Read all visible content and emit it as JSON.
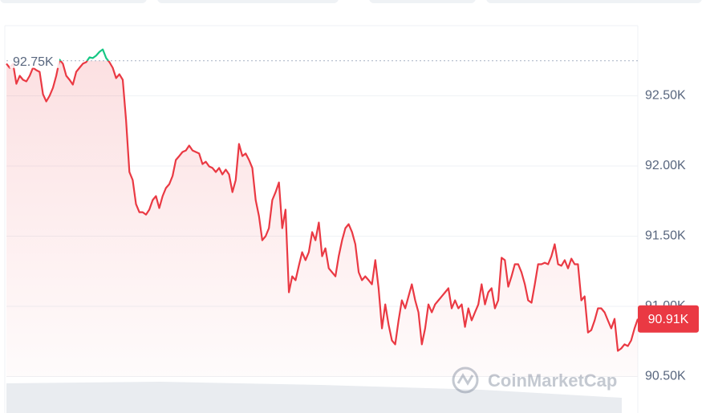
{
  "chart_data": {
    "type": "line",
    "values": [
      92.729,
      92.7,
      92.729,
      92.586,
      92.643,
      92.614,
      92.603,
      92.643,
      92.7,
      92.683,
      92.671,
      92.511,
      92.46,
      92.5,
      92.557,
      92.643,
      92.757,
      92.729,
      92.643,
      92.614,
      92.58,
      92.671,
      92.7,
      92.729,
      92.74,
      92.774,
      92.769,
      92.786,
      92.814,
      92.831,
      92.769,
      92.74,
      92.7,
      92.626,
      92.654,
      92.614,
      92.329,
      91.957,
      91.9,
      91.729,
      91.671,
      91.671,
      91.654,
      91.689,
      91.757,
      91.786,
      91.7,
      91.786,
      91.843,
      91.871,
      91.929,
      92.043,
      92.071,
      92.1,
      92.111,
      92.146,
      92.111,
      92.1,
      92.089,
      92.014,
      92.031,
      91.997,
      91.986,
      91.957,
      91.986,
      91.94,
      91.974,
      91.94,
      91.814,
      91.9,
      92.157,
      92.071,
      92.089,
      92.043,
      91.986,
      91.757,
      91.643,
      91.471,
      91.5,
      91.557,
      91.757,
      91.814,
      91.883,
      91.557,
      91.689,
      91.1,
      91.214,
      91.186,
      91.289,
      91.386,
      91.329,
      91.386,
      91.529,
      91.471,
      91.597,
      91.357,
      91.414,
      91.271,
      91.243,
      91.214,
      91.357,
      91.471,
      91.557,
      91.586,
      91.529,
      91.443,
      91.243,
      91.186,
      91.214,
      91.186,
      91.157,
      91.329,
      91.129,
      90.843,
      91.014,
      90.871,
      90.757,
      90.729,
      90.9,
      91.043,
      90.986,
      91.071,
      91.157,
      91.043,
      90.957,
      90.729,
      90.843,
      91.014,
      90.957,
      91.014,
      91.043,
      91.071,
      91.1,
      91.129,
      90.986,
      91.043,
      90.986,
      91.014,
      90.854,
      90.986,
      90.9,
      90.957,
      91.014,
      91.157,
      91.014,
      91.1,
      91.129,
      90.986,
      91.043,
      91.346,
      91.329,
      91.14,
      91.214,
      91.3,
      91.3,
      91.243,
      91.157,
      91.043,
      91.026,
      91.157,
      91.3,
      91.3,
      91.311,
      91.3,
      91.357,
      91.443,
      91.3,
      91.289,
      91.329,
      91.271,
      91.34,
      91.3,
      91.3,
      91.043,
      91.071,
      90.814,
      90.831,
      90.9,
      90.986,
      90.986,
      90.957,
      90.9,
      90.843,
      90.911,
      90.683,
      90.7,
      90.729,
      90.717,
      90.757,
      90.843,
      90.911
    ],
    "color": "#ea3943",
    "color_above": "#16c784",
    "reference": {
      "value": 92.75,
      "label": "92.75K"
    },
    "current": {
      "value": 90.91,
      "label": "90.91K"
    },
    "ylim": [
      90.4,
      93.0
    ],
    "yticks": [
      {
        "value": 90.5,
        "label": "90.50K"
      },
      {
        "value": 91.0,
        "label": "91.00K"
      },
      {
        "value": 91.5,
        "label": "91.50K"
      },
      {
        "value": 92.0,
        "label": "92.00K"
      },
      {
        "value": 92.5,
        "label": "92.50K"
      }
    ],
    "grid": true,
    "watermark": "CoinMarketCap"
  }
}
